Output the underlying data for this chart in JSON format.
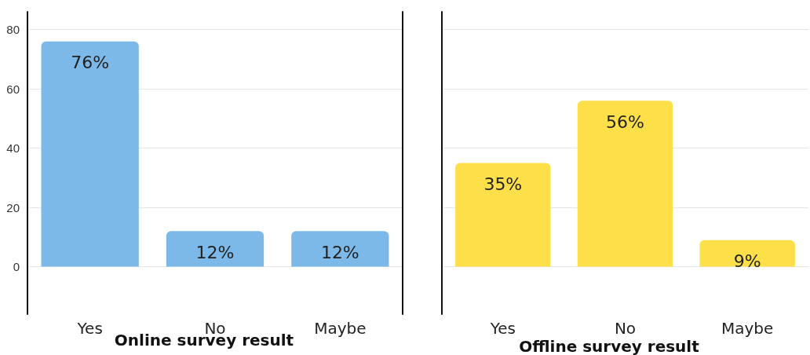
{
  "chart_data": [
    {
      "type": "bar",
      "title": "Online survey result",
      "categories": [
        "Yes",
        "No",
        "Maybe"
      ],
      "values": [
        76,
        12,
        12
      ],
      "value_labels": [
        "76%",
        "12%",
        "12%"
      ],
      "color": "#7db9e8",
      "ylim": [
        -16,
        86
      ],
      "yticks": [
        0,
        20,
        40,
        60,
        80
      ],
      "grid": "y"
    },
    {
      "type": "bar",
      "title": "Offline survey result",
      "categories": [
        "Yes",
        "No",
        "Maybe"
      ],
      "values": [
        35,
        56,
        9
      ],
      "value_labels": [
        "35%",
        "56%",
        "9%"
      ],
      "color": "#fddf4a",
      "ylim": [
        -16,
        86
      ],
      "yticks": [
        0,
        20,
        40,
        60,
        80
      ],
      "grid": "y",
      "tick_labels": "x"
    }
  ]
}
